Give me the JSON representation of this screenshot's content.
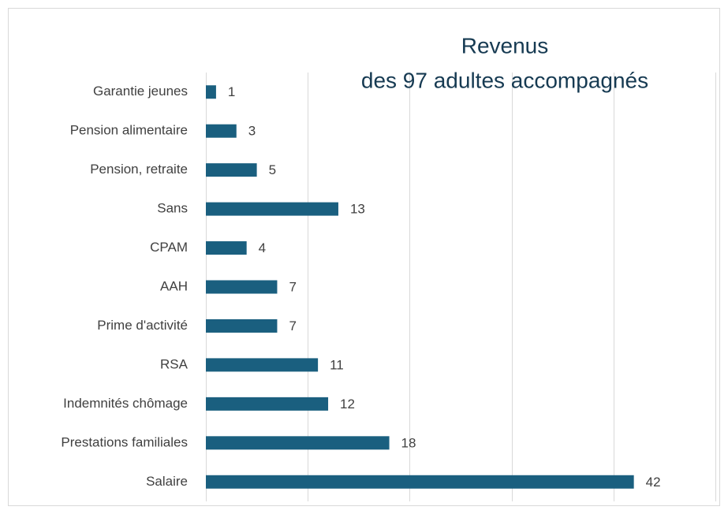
{
  "chart_data": {
    "type": "barh",
    "title": [
      "Revenus",
      "des 97 adultes accompagnés"
    ],
    "categories": [
      "Garantie jeunes",
      "Pension alimentaire",
      "Pension, retraite",
      "Sans",
      "CPAM",
      "AAH",
      "Prime d'activité",
      "RSA",
      "Indemnités chômage",
      "Prestations familiales",
      "Salaire"
    ],
    "values": [
      1,
      3,
      5,
      13,
      4,
      7,
      7,
      11,
      12,
      18,
      42
    ],
    "color": "#1a5f7f",
    "xlim": [
      0,
      50
    ],
    "xticks": [
      0,
      10,
      20,
      30,
      40,
      50
    ],
    "grid": true
  }
}
